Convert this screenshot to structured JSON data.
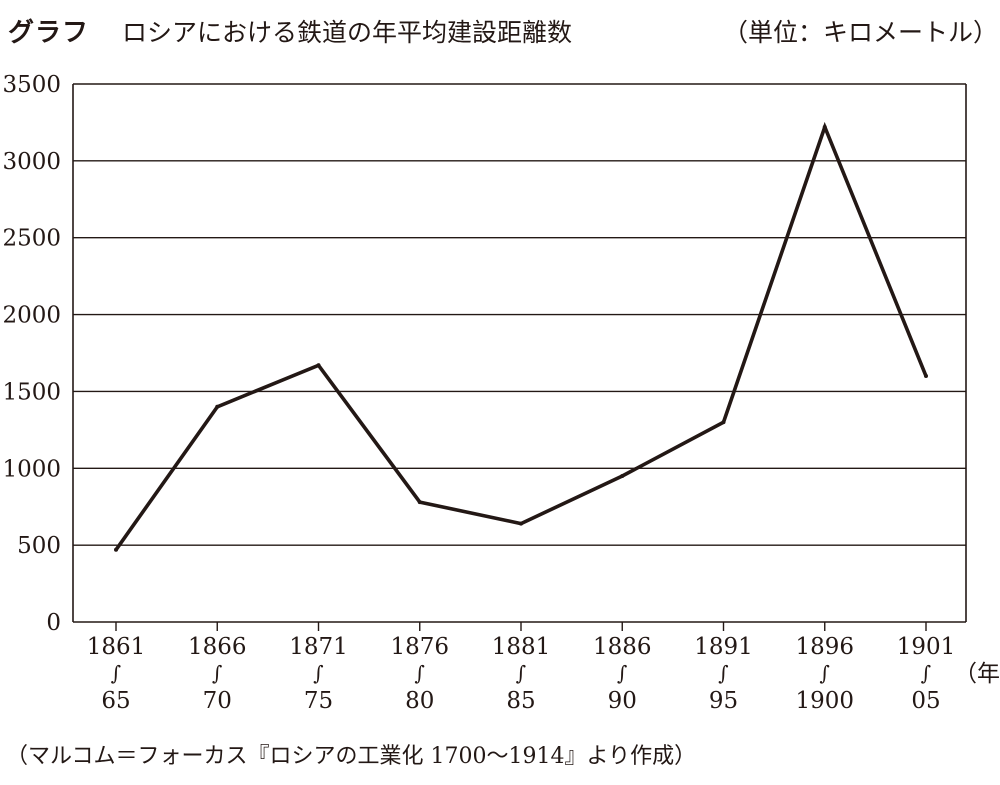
{
  "header": {
    "graph_label": "グラフ",
    "title": "ロシアにおける鉄道の年平均建設距離数",
    "unit": "（単位：キロメートル）"
  },
  "source": "（マルコム＝フォーカス『ロシアの工業化 1700～1914』より作成）",
  "chart_data": {
    "type": "line",
    "title": "ロシアにおける鉄道の年平均建設距離数",
    "unit_label": "（単位：キロメートル）",
    "x_unit_label": "（年）",
    "ylim": [
      0,
      3500
    ],
    "y_ticks": [
      0,
      500,
      1000,
      1500,
      2000,
      2500,
      3000,
      3500
    ],
    "grid": true,
    "categories": [
      {
        "start": "1861",
        "end": "65"
      },
      {
        "start": "1866",
        "end": "70"
      },
      {
        "start": "1871",
        "end": "75"
      },
      {
        "start": "1876",
        "end": "80"
      },
      {
        "start": "1881",
        "end": "85"
      },
      {
        "start": "1886",
        "end": "90"
      },
      {
        "start": "1891",
        "end": "95"
      },
      {
        "start": "1896",
        "end": "1900"
      },
      {
        "start": "1901",
        "end": "05"
      }
    ],
    "range_mark": "∫",
    "values": [
      470,
      1400,
      1670,
      780,
      640,
      950,
      1300,
      3220,
      1600
    ],
    "line_color": "#231815",
    "grid_color": "#231815"
  }
}
